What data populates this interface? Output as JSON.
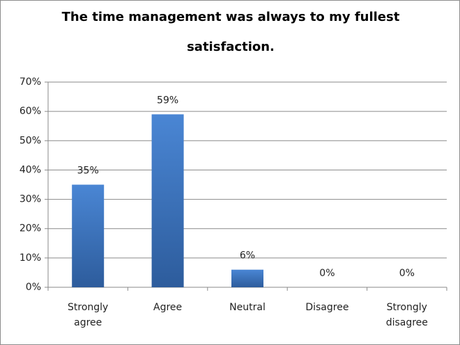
{
  "chart_data": {
    "type": "bar",
    "title": "The time management was always to my fullest satisfaction.",
    "categories": [
      "Strongly agree",
      "Agree",
      "Neutral",
      "Disagree",
      "Strongly disagree"
    ],
    "values": [
      35,
      59,
      6,
      0,
      0
    ],
    "value_labels": [
      "35%",
      "59%",
      "6%",
      "0%",
      "0%"
    ],
    "color": "#3d73bd",
    "ylim": [
      0,
      70
    ],
    "yticks": [
      {
        "value": 0,
        "label": "0%"
      },
      {
        "value": 10,
        "label": "10%"
      },
      {
        "value": 20,
        "label": "20%"
      },
      {
        "value": 30,
        "label": "30%"
      },
      {
        "value": 40,
        "label": "40%"
      },
      {
        "value": 50,
        "label": "50%"
      },
      {
        "value": 60,
        "label": "60%"
      },
      {
        "value": 70,
        "label": "70%"
      }
    ],
    "grid": true
  }
}
